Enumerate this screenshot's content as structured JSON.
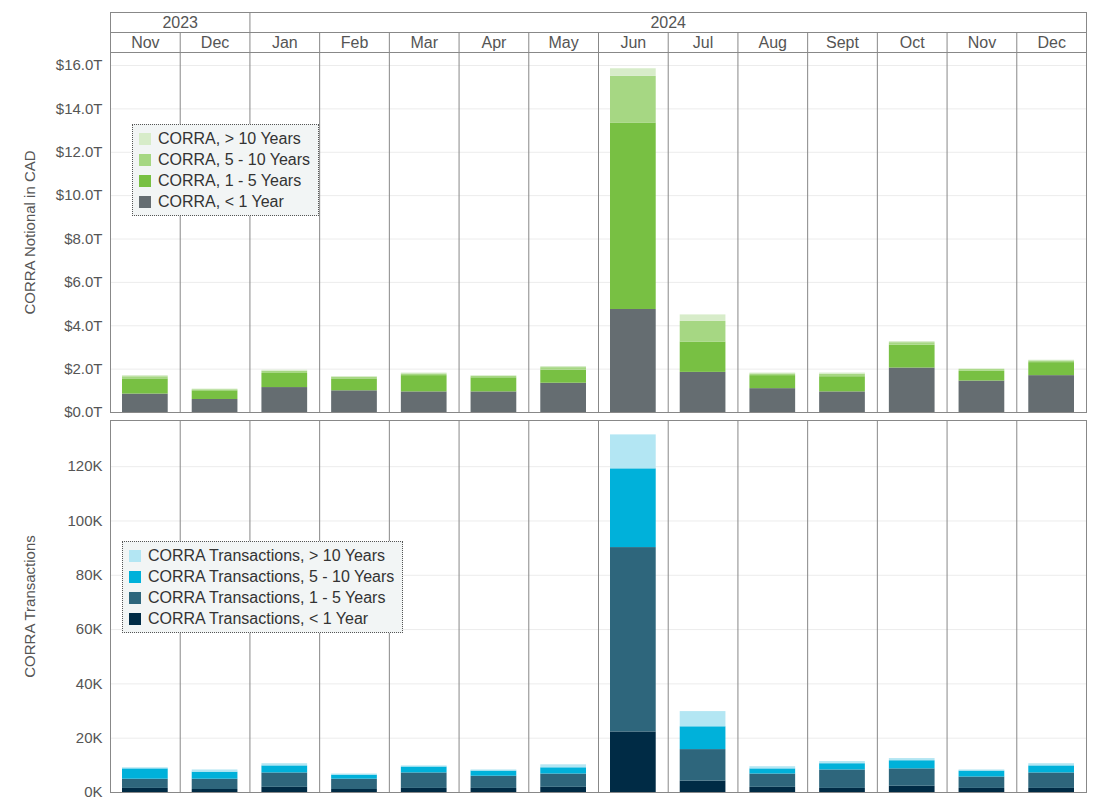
{
  "chart_data": [
    {
      "type": "bar",
      "stacked": true,
      "grid": true,
      "legend": "upper left",
      "ylabel": "CORRA Notional in CAD",
      "x_groups": [
        {
          "label": "2023",
          "count": 2
        },
        {
          "label": "2024",
          "count": 12
        }
      ],
      "categories": [
        "Nov",
        "Dec",
        "Jan",
        "Feb",
        "Mar",
        "Apr",
        "May",
        "Jun",
        "Jul",
        "Aug",
        "Sept",
        "Oct",
        "Nov",
        "Dec"
      ],
      "ylim": [
        0,
        16600000000000
      ],
      "yticks": [
        {
          "value": 0,
          "label": "$0.0T"
        },
        {
          "value": 2000000000000,
          "label": "$2.0T"
        },
        {
          "value": 4000000000000,
          "label": "$4.0T"
        },
        {
          "value": 6000000000000,
          "label": "$6.0T"
        },
        {
          "value": 8000000000000,
          "label": "$8.0T"
        },
        {
          "value": 10000000000000,
          "label": "$10.0T"
        },
        {
          "value": 12000000000000,
          "label": "$12.0T"
        },
        {
          "value": 14000000000000,
          "label": "$14.0T"
        },
        {
          "value": 16000000000000,
          "label": "$16.0T"
        }
      ],
      "series": [
        {
          "name": "CORRA, < 1 Year",
          "color": "#656d71",
          "values": [
            850000000000,
            600000000000,
            1150000000000,
            1000000000000,
            950000000000,
            950000000000,
            1350000000000,
            4750000000000,
            1850000000000,
            1100000000000,
            950000000000,
            2050000000000,
            1450000000000,
            1700000000000
          ]
        },
        {
          "name": "CORRA, 1 - 5 Years",
          "color": "#78c043",
          "values": [
            700000000000,
            400000000000,
            650000000000,
            550000000000,
            750000000000,
            650000000000,
            600000000000,
            8600000000000,
            1400000000000,
            600000000000,
            700000000000,
            1050000000000,
            450000000000,
            600000000000
          ]
        },
        {
          "name": "CORRA, 5 - 10 Years",
          "color": "#a6d783",
          "values": [
            100000000000,
            50000000000,
            100000000000,
            80000000000,
            80000000000,
            70000000000,
            120000000000,
            2150000000000,
            950000000000,
            80000000000,
            120000000000,
            120000000000,
            80000000000,
            80000000000
          ]
        },
        {
          "name": "CORRA, > 10 Years",
          "color": "#d7ecc9",
          "values": [
            50000000000,
            30000000000,
            50000000000,
            30000000000,
            40000000000,
            30000000000,
            50000000000,
            350000000000,
            300000000000,
            40000000000,
            50000000000,
            50000000000,
            30000000000,
            30000000000
          ]
        }
      ]
    },
    {
      "type": "bar",
      "stacked": true,
      "grid": true,
      "legend": "upper left",
      "ylabel": "CORRA Transactions",
      "categories": [
        "Nov",
        "Dec",
        "Jan",
        "Feb",
        "Mar",
        "Apr",
        "May",
        "Jun",
        "Jul",
        "Aug",
        "Sept",
        "Oct",
        "Nov",
        "Dec"
      ],
      "ylim": [
        0,
        137000
      ],
      "yticks": [
        {
          "value": 0,
          "label": "0K"
        },
        {
          "value": 20000,
          "label": "20K"
        },
        {
          "value": 40000,
          "label": "40K"
        },
        {
          "value": 60000,
          "label": "60K"
        },
        {
          "value": 80000,
          "label": "80K"
        },
        {
          "value": 100000,
          "label": "100K"
        },
        {
          "value": 120000,
          "label": "120K"
        }
      ],
      "series": [
        {
          "name": "CORRA Transactions, < 1 Year",
          "color": "#002b45",
          "values": [
            1500,
            1100,
            1900,
            1100,
            1500,
            1500,
            1900,
            22300,
            4200,
            1900,
            1500,
            2300,
            1500,
            1500
          ]
        },
        {
          "name": "CORRA Transactions, 1 - 5 Years",
          "color": "#2e667c",
          "values": [
            3400,
            3800,
            5300,
            3800,
            5700,
            4500,
            4900,
            67900,
            11600,
            4900,
            6800,
            6400,
            4200,
            5700
          ]
        },
        {
          "name": "CORRA Transactions, 5 - 10 Years",
          "color": "#00b1da",
          "values": [
            3800,
            2600,
            2600,
            1500,
            2200,
            1900,
            2300,
            29000,
            8400,
            1900,
            2300,
            3000,
            2200,
            2600
          ]
        },
        {
          "name": "CORRA Transactions, > 10 Years",
          "color": "#b3e6f3",
          "values": [
            400,
            800,
            800,
            400,
            400,
            400,
            1100,
            12500,
            5600,
            800,
            800,
            800,
            400,
            800
          ]
        }
      ]
    }
  ]
}
